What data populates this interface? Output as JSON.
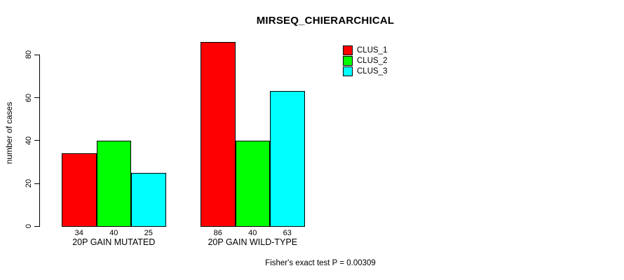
{
  "title": "MIRSEQ_CHIERARCHICAL",
  "footnote": "Fisher's exact test P = 0.00309",
  "chart_data": {
    "type": "bar",
    "title": "MIRSEQ_CHIERARCHICAL",
    "categories": [
      "20P GAIN MUTATED",
      "20P GAIN WILD-TYPE"
    ],
    "series": [
      {
        "name": "CLUS_1",
        "color": "#FF0000",
        "values": [
          34,
          86
        ]
      },
      {
        "name": "CLUS_2",
        "color": "#00FF00",
        "values": [
          40,
          40
        ]
      },
      {
        "name": "CLUS_3",
        "color": "#00FFFF",
        "values": [
          25,
          63
        ]
      }
    ],
    "bar_value_labels": [
      [
        "34",
        "40",
        "25"
      ],
      [
        "86",
        "40",
        "63"
      ]
    ],
    "ylabel": "number of cases",
    "xlabel": "",
    "ylim": [
      0,
      86
    ],
    "yticks": [
      0,
      20,
      40,
      60,
      80
    ],
    "grid": false,
    "legend_position": "top-right",
    "annotation": "Fisher's exact test P = 0.00309"
  }
}
